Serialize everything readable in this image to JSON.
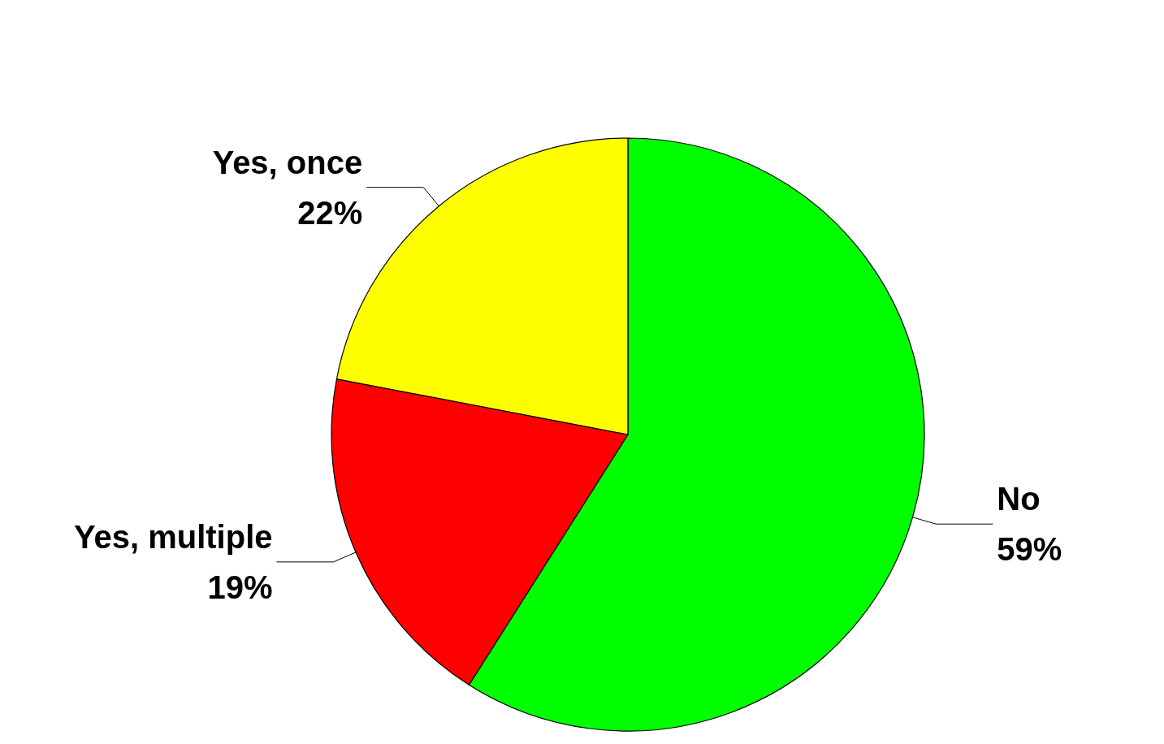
{
  "chart_data": {
    "type": "pie",
    "categories": [
      "No",
      "Yes, multiple",
      "Yes, once"
    ],
    "values": [
      59,
      19,
      22
    ],
    "colors": [
      "#00ff00",
      "#ff0000",
      "#ffff00"
    ],
    "value_labels": [
      "59%",
      "19%",
      "22%"
    ],
    "legend": false
  }
}
